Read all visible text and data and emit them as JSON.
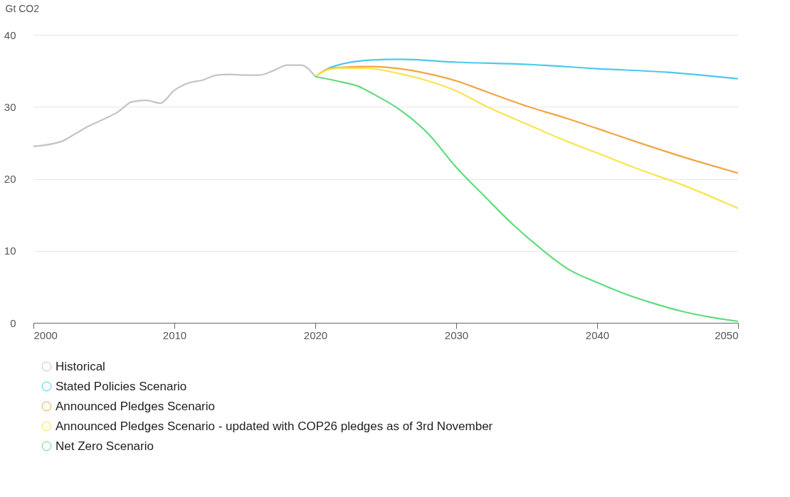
{
  "chart_data": {
    "type": "line",
    "ylabel": "Gt CO2",
    "xlim": [
      2000,
      2050
    ],
    "xticks": [
      2000,
      2010,
      2020,
      2030,
      2040,
      2050
    ],
    "ylim": [
      0,
      40
    ],
    "yticks": [
      0,
      10,
      20,
      30,
      40
    ],
    "grid": "y",
    "legend": "bottom",
    "marker": "none",
    "line_style": "solid",
    "series": [
      {
        "name": "Historical",
        "color": "#c4c4c4",
        "x": [
          2000,
          2002,
          2003,
          2004,
          2005,
          2006,
          2007,
          2008,
          2009,
          2010,
          2011,
          2012,
          2013,
          2014,
          2015,
          2016,
          2017,
          2018,
          2019,
          2020
        ],
        "values": [
          24.5,
          25.2,
          26.3,
          27.4,
          28.3,
          29.3,
          30.7,
          30.9,
          30.5,
          32.3,
          33.3,
          33.7,
          34.4,
          34.5,
          34.4,
          34.4,
          35.0,
          35.8,
          35.8,
          34.2
        ]
      },
      {
        "name": "Stated Policies Scenario",
        "color": "#4cc8ee",
        "x": [
          2020,
          2021,
          2022,
          2024,
          2026,
          2030,
          2035,
          2040,
          2045,
          2050
        ],
        "values": [
          34.2,
          35.4,
          36.0,
          36.5,
          36.6,
          36.2,
          35.9,
          35.3,
          34.8,
          33.9
        ]
      },
      {
        "name": "Announced Pledges Scenario",
        "color": "#f2a545",
        "x": [
          2020,
          2021,
          2022,
          2024,
          2026,
          2028,
          2030,
          2032,
          2035,
          2038,
          2040,
          2043,
          2046,
          2050
        ],
        "values": [
          34.2,
          35.3,
          35.5,
          35.6,
          35.3,
          34.6,
          33.6,
          32.2,
          30.1,
          28.3,
          27.0,
          25.0,
          23.1,
          20.8
        ]
      },
      {
        "name": "Announced Pledges Scenario - updated with COP26 pledges as of 3rd November",
        "color": "#f8e54e",
        "x": [
          2020,
          2021,
          2022,
          2024,
          2026,
          2028,
          2030,
          2032,
          2035,
          2038,
          2040,
          2043,
          2046,
          2050
        ],
        "values": [
          34.2,
          35.2,
          35.4,
          35.3,
          34.6,
          33.6,
          32.2,
          30.2,
          27.6,
          25.1,
          23.6,
          21.3,
          19.2,
          15.9
        ]
      },
      {
        "name": "Net Zero Scenario",
        "color": "#5edd7c",
        "x": [
          2020,
          2022,
          2023,
          2024,
          2026,
          2028,
          2030,
          2032,
          2034,
          2036,
          2038,
          2040,
          2042,
          2044,
          2046,
          2048,
          2050
        ],
        "values": [
          34.2,
          33.4,
          32.9,
          31.9,
          29.6,
          26.3,
          21.6,
          17.6,
          13.7,
          10.3,
          7.4,
          5.6,
          4.0,
          2.7,
          1.6,
          0.8,
          0.2
        ]
      }
    ]
  }
}
